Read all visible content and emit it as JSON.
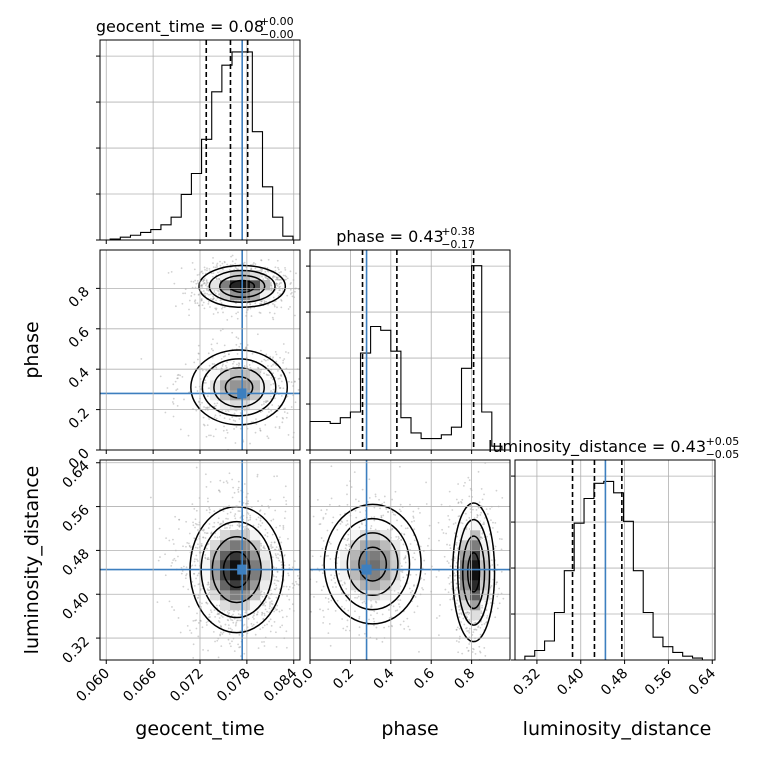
{
  "chart_data": {
    "type": "corner",
    "parameters": [
      "geocent_time",
      "phase",
      "luminosity_distance"
    ],
    "truth": {
      "geocent_time": 0.0774,
      "phase": 0.28,
      "luminosity_distance": 0.445
    },
    "colors": {
      "truth": "#3d7fbf",
      "line": "#000000",
      "grid": "#b0b0b0",
      "scatter": "#9a9a9a"
    },
    "grid": true,
    "titles": [
      {
        "param": "geocent_time",
        "label": "geocent_time = 0.08",
        "plus": "+0.00",
        "minus": "−0.00"
      },
      {
        "param": "phase",
        "label": "phase = 0.43",
        "plus": "+0.38",
        "minus": "−0.17"
      },
      {
        "param": "luminosity_distance",
        "label": "luminosity_distance = 0.43",
        "plus": "+0.05",
        "minus": "−0.05"
      }
    ],
    "axes": {
      "geocent_time": {
        "range": [
          0.0592,
          0.0848
        ],
        "ticks": [
          0.06,
          0.066,
          0.072,
          0.078,
          0.084
        ],
        "tick_labels": [
          "0.060",
          "0.066",
          "0.072",
          "0.078",
          "0.084"
        ],
        "xlabel": "geocent_time"
      },
      "phase": {
        "range": [
          0.0,
          0.99
        ],
        "ticks": [
          0.0,
          0.2,
          0.4,
          0.6,
          0.8
        ],
        "tick_labels": [
          "0.0",
          "0.2",
          "0.4",
          "0.6",
          "0.8"
        ],
        "xlabel": "phase",
        "ylabel": "phase"
      },
      "luminosity_distance": {
        "range": [
          0.28,
          0.645
        ],
        "ticks": [
          0.32,
          0.4,
          0.48,
          0.56,
          0.64
        ],
        "tick_labels": [
          "0.32",
          "0.40",
          "0.48",
          "0.56",
          "0.64"
        ],
        "xlabel": "luminosity_distance",
        "ylabel": "luminosity_distance"
      }
    },
    "histograms": {
      "geocent_time": {
        "quantiles": [
          0.0728,
          0.0759,
          0.0781
        ],
        "bin_edges": [
          0.0592,
          0.0605,
          0.0618,
          0.0631,
          0.0644,
          0.0657,
          0.067,
          0.0683,
          0.0696,
          0.0709,
          0.0722,
          0.0735,
          0.0748,
          0.0761,
          0.0774,
          0.0787,
          0.08,
          0.0813,
          0.0826,
          0.0839,
          0.0848
        ],
        "counts": [
          0.0,
          0.005,
          0.015,
          0.025,
          0.04,
          0.055,
          0.08,
          0.12,
          0.24,
          0.35,
          0.53,
          0.78,
          0.92,
          0.99,
          0.99,
          0.57,
          0.28,
          0.12,
          0.02,
          0.0
        ]
      },
      "phase": {
        "quantiles": [
          0.26,
          0.43,
          0.81
        ],
        "bin_edges": [
          0.0,
          0.05,
          0.1,
          0.15,
          0.2,
          0.25,
          0.3,
          0.35,
          0.4,
          0.45,
          0.5,
          0.55,
          0.6,
          0.65,
          0.7,
          0.75,
          0.8,
          0.85,
          0.9,
          0.95,
          0.99
        ],
        "counts": [
          0.15,
          0.15,
          0.14,
          0.17,
          0.2,
          0.51,
          0.65,
          0.63,
          0.52,
          0.17,
          0.09,
          0.06,
          0.06,
          0.08,
          0.12,
          0.43,
          0.97,
          0.2,
          0.02,
          0.0
        ]
      },
      "luminosity_distance": {
        "quantiles": [
          0.385,
          0.425,
          0.475
        ],
        "bin_edges": [
          0.28,
          0.298,
          0.316,
          0.334,
          0.352,
          0.37,
          0.388,
          0.406,
          0.424,
          0.442,
          0.46,
          0.478,
          0.496,
          0.514,
          0.532,
          0.55,
          0.568,
          0.586,
          0.604,
          0.622,
          0.645
        ],
        "counts": [
          0.0,
          0.02,
          0.05,
          0.1,
          0.25,
          0.47,
          0.72,
          0.85,
          0.93,
          0.94,
          0.88,
          0.73,
          0.47,
          0.25,
          0.12,
          0.07,
          0.04,
          0.02,
          0.01,
          0.0
        ]
      }
    },
    "joint_2d": [
      {
        "x": "geocent_time",
        "y": "phase",
        "modes": [
          {
            "cx": 0.0774,
            "cy": 0.81,
            "sx": 0.0024,
            "sy": 0.045,
            "w": 1.0
          },
          {
            "cx": 0.077,
            "cy": 0.31,
            "sx": 0.003,
            "sy": 0.09,
            "w": 0.6
          }
        ]
      },
      {
        "x": "geocent_time",
        "y": "luminosity_distance",
        "modes": [
          {
            "cx": 0.0767,
            "cy": 0.445,
            "sx": 0.0026,
            "sy": 0.05,
            "w": 1.0
          }
        ]
      },
      {
        "x": "phase",
        "y": "luminosity_distance",
        "modes": [
          {
            "cx": 0.31,
            "cy": 0.455,
            "sx": 0.11,
            "sy": 0.05,
            "w": 0.7
          },
          {
            "cx": 0.81,
            "cy": 0.44,
            "sx": 0.045,
            "sy": 0.055,
            "w": 1.0
          }
        ]
      }
    ]
  }
}
